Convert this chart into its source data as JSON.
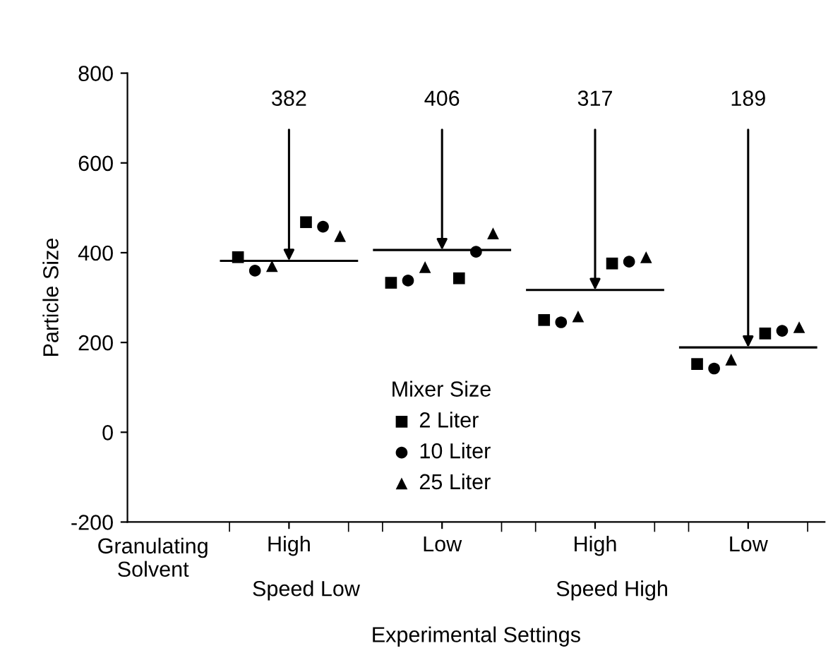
{
  "chart_data": {
    "type": "scatter",
    "xlabel": "Experimental Settings",
    "ylabel": "Particle Size",
    "legend_title": "Mixer Size",
    "categories": [
      null,
      null,
      null,
      null,
      null,
      null,
      null,
      null,
      null,
      null,
      null,
      null,
      null,
      null,
      null,
      null,
      null,
      null,
      null,
      null,
      null,
      null,
      null,
      null,
      null,
      null,
      null,
      null,
      null,
      null,
      null,
      null,
      null,
      null,
      null,
      null,
      null,
      null,
      null,
      null,
      null
    ],
    "ylim": [
      -200,
      800
    ],
    "yticks": [
      -200,
      0,
      200,
      400,
      600,
      800
    ],
    "grid": false,
    "legend": "bottom",
    "series": [
      {
        "name": "2 Liter",
        "color": "#000000",
        "marker": "square",
        "values": [
          null,
          null,
          null,
          null,
          null,
          null,
          390,
          null,
          null,
          null,
          468,
          null,
          null,
          null,
          null,
          333,
          null,
          null,
          null,
          343,
          null,
          null,
          null,
          null,
          250,
          null,
          null,
          null,
          376,
          null,
          null,
          null,
          null,
          152,
          null,
          null,
          null,
          220,
          null,
          null,
          null
        ]
      },
      {
        "name": "10 Liter",
        "color": "#000000",
        "marker": "circle",
        "values": [
          null,
          null,
          null,
          null,
          null,
          null,
          null,
          360,
          null,
          null,
          null,
          458,
          null,
          null,
          null,
          null,
          338,
          null,
          null,
          null,
          402,
          null,
          null,
          null,
          null,
          245,
          null,
          null,
          null,
          380,
          null,
          null,
          null,
          null,
          142,
          null,
          null,
          null,
          226,
          null,
          null
        ]
      },
      {
        "name": "25 Liter",
        "color": "#000000",
        "marker": "triangle",
        "values": [
          null,
          null,
          null,
          null,
          null,
          null,
          null,
          null,
          370,
          null,
          null,
          null,
          437,
          null,
          null,
          null,
          null,
          368,
          null,
          null,
          null,
          443,
          null,
          null,
          null,
          null,
          258,
          null,
          null,
          null,
          390,
          null,
          null,
          null,
          null,
          162,
          null,
          null,
          null,
          234,
          null
        ]
      },
      {
        "type": "line",
        "color": "#000000",
        "marker": "none",
        "values": [
          null,
          null,
          null,
          null,
          null,
          382,
          382,
          382,
          382,
          382,
          382,
          382,
          382,
          382,
          null,
          null,
          null,
          null,
          null,
          null,
          null,
          null,
          null,
          null,
          null,
          null,
          null,
          null,
          null,
          null,
          null,
          null,
          null,
          null,
          null,
          null,
          null,
          null,
          null,
          null,
          null
        ]
      },
      {
        "type": "line",
        "color": "#000000",
        "marker": "none",
        "values": [
          null,
          null,
          null,
          null,
          null,
          null,
          null,
          null,
          null,
          null,
          null,
          null,
          null,
          null,
          406,
          406,
          406,
          406,
          406,
          406,
          406,
          406,
          406,
          null,
          null,
          null,
          null,
          null,
          null,
          null,
          null,
          null,
          null,
          null,
          null,
          null,
          null,
          null,
          null,
          null,
          null
        ]
      },
      {
        "type": "line",
        "color": "#000000",
        "marker": "none",
        "values": [
          null,
          null,
          null,
          null,
          null,
          null,
          null,
          null,
          null,
          null,
          null,
          null,
          null,
          null,
          null,
          null,
          null,
          null,
          null,
          null,
          null,
          null,
          null,
          317,
          317,
          317,
          317,
          317,
          317,
          317,
          317,
          317,
          null,
          null,
          null,
          null,
          null,
          null,
          null,
          null,
          null
        ]
      },
      {
        "type": "line",
        "color": "#000000",
        "marker": "none",
        "values": [
          null,
          null,
          null,
          null,
          null,
          null,
          null,
          null,
          null,
          null,
          null,
          null,
          null,
          null,
          null,
          null,
          null,
          null,
          null,
          null,
          null,
          null,
          null,
          null,
          null,
          null,
          null,
          null,
          null,
          null,
          null,
          null,
          189,
          189,
          189,
          189,
          189,
          189,
          189,
          189,
          189
        ]
      }
    ],
    "annotations": [
      "Granulating\nSolvent",
      "High",
      "Low",
      "High",
      "Low",
      "Speed Low",
      "Speed High",
      "382",
      "406",
      "317",
      "189"
    ]
  }
}
